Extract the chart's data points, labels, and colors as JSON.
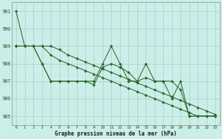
{
  "xlabel": "Graphe pression niveau de la mer (hPa)",
  "ylim": [
    984.5,
    991.5
  ],
  "xlim": [
    -0.5,
    23.5
  ],
  "yticks": [
    985,
    986,
    987,
    988,
    989,
    990,
    991
  ],
  "xticks": [
    0,
    1,
    2,
    3,
    4,
    5,
    6,
    7,
    8,
    9,
    10,
    11,
    12,
    13,
    14,
    15,
    16,
    17,
    18,
    19,
    20,
    21,
    22,
    23
  ],
  "bg_color": "#cceee8",
  "grid_color": "#aacccc",
  "line_color": "#2d6a2d",
  "line1": [
    991,
    989,
    989,
    989,
    989,
    988.8,
    988.5,
    988.3,
    988.1,
    987.9,
    987.7,
    987.5,
    987.3,
    987.1,
    986.9,
    986.7,
    986.5,
    986.3,
    986.1,
    985.9,
    985.7,
    985.5,
    985.3,
    985.1
  ],
  "line2": [
    989,
    989,
    989,
    988,
    987,
    987,
    987,
    987,
    987,
    987,
    988,
    989,
    988,
    987,
    987,
    988,
    987,
    987,
    986,
    987,
    985,
    985,
    985,
    985
  ],
  "line3": [
    989,
    989,
    989,
    988,
    987,
    987,
    987,
    987,
    987,
    986.8,
    987.8,
    988,
    987.8,
    987.5,
    987,
    987.2,
    987,
    987,
    987,
    986.5,
    985,
    985,
    985,
    985
  ],
  "line4": [
    989,
    989,
    989,
    989,
    988.5,
    988.2,
    988.0,
    987.8,
    987.6,
    987.4,
    987.2,
    987.0,
    986.8,
    986.6,
    986.4,
    986.2,
    986.0,
    985.8,
    985.6,
    985.4,
    985.2,
    985.0,
    985.0,
    985.0
  ]
}
